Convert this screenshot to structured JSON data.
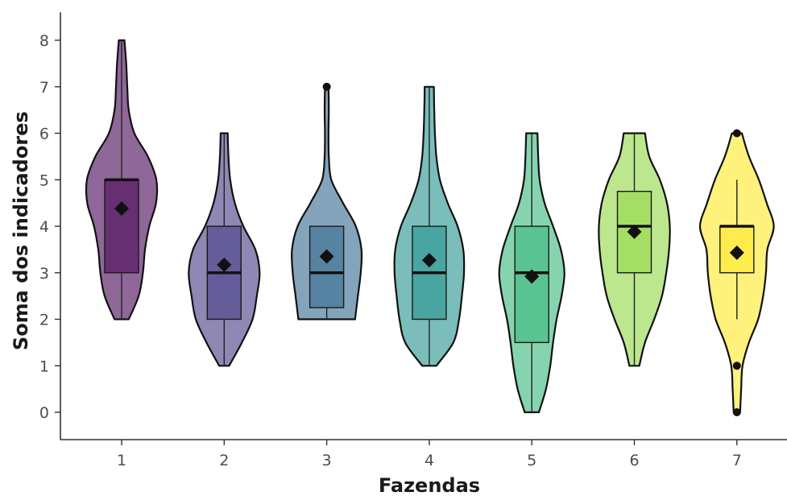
{
  "chart_data": {
    "type": "violin",
    "xlabel": "Fazendas",
    "ylabel": "Soma dos indicadores",
    "ylim": [
      -0.55,
      8.6
    ],
    "yticks": [
      0,
      1,
      2,
      3,
      4,
      5,
      6,
      7,
      8
    ],
    "grid": false,
    "legend": "none",
    "series": [
      {
        "category": "1",
        "color": "#440154",
        "min": 2,
        "q1": 3,
        "median": 5,
        "q3": 5,
        "max": 8,
        "mean": 4.38,
        "outliers": [],
        "density": [
          [
            2,
            0.2
          ],
          [
            2.5,
            0.48
          ],
          [
            3,
            0.6
          ],
          [
            3.5,
            0.66
          ],
          [
            4,
            0.78
          ],
          [
            4.5,
            0.97
          ],
          [
            5,
            0.98
          ],
          [
            5.5,
            0.74
          ],
          [
            6,
            0.36
          ],
          [
            6.5,
            0.2
          ],
          [
            7,
            0.16
          ],
          [
            7.5,
            0.13
          ],
          [
            8,
            0.08
          ]
        ]
      },
      {
        "category": "2",
        "color": "#443983",
        "min": 1,
        "q1": 2,
        "median": 3,
        "q3": 4,
        "max": 6,
        "mean": 3.17,
        "outliers": [],
        "density": [
          [
            1,
            0.14
          ],
          [
            1.5,
            0.5
          ],
          [
            2,
            0.8
          ],
          [
            2.5,
            0.92
          ],
          [
            3,
            1.0
          ],
          [
            3.5,
            0.88
          ],
          [
            4,
            0.54
          ],
          [
            4.5,
            0.3
          ],
          [
            5,
            0.17
          ],
          [
            5.5,
            0.12
          ],
          [
            6,
            0.1
          ]
        ]
      },
      {
        "category": "3",
        "color": "#31688e",
        "min": 2,
        "q1": 2.25,
        "median": 3,
        "q3": 4,
        "max": 4,
        "mean": 3.35,
        "outliers": [
          7
        ],
        "density": [
          [
            2,
            0.8
          ],
          [
            2.5,
            0.88
          ],
          [
            3,
            0.96
          ],
          [
            3.5,
            0.98
          ],
          [
            4,
            0.82
          ],
          [
            4.5,
            0.46
          ],
          [
            5,
            0.13
          ],
          [
            5.5,
            0.06
          ],
          [
            6,
            0.05
          ],
          [
            6.5,
            0.06
          ],
          [
            7,
            0.05
          ]
        ]
      },
      {
        "category": "4",
        "color": "#21918c",
        "min": 1,
        "q1": 2,
        "median": 3,
        "q3": 4,
        "max": 7,
        "mean": 3.27,
        "outliers": [],
        "density": [
          [
            1,
            0.2
          ],
          [
            1.5,
            0.68
          ],
          [
            2,
            0.84
          ],
          [
            2.5,
            0.92
          ],
          [
            3,
            0.98
          ],
          [
            3.5,
            0.96
          ],
          [
            4,
            0.8
          ],
          [
            4.5,
            0.52
          ],
          [
            5,
            0.3
          ],
          [
            5.5,
            0.2
          ],
          [
            6,
            0.16
          ],
          [
            6.5,
            0.14
          ],
          [
            7,
            0.13
          ]
        ]
      },
      {
        "category": "5",
        "color": "#35b779",
        "min": 0,
        "q1": 1.5,
        "median": 3,
        "q3": 4,
        "max": 6,
        "mean": 2.92,
        "outliers": [],
        "density": [
          [
            0,
            0.2
          ],
          [
            0.5,
            0.4
          ],
          [
            1,
            0.52
          ],
          [
            1.5,
            0.6
          ],
          [
            2,
            0.7
          ],
          [
            2.5,
            0.84
          ],
          [
            3,
            0.92
          ],
          [
            3.5,
            0.82
          ],
          [
            4,
            0.6
          ],
          [
            4.5,
            0.36
          ],
          [
            5,
            0.22
          ],
          [
            5.5,
            0.18
          ],
          [
            6,
            0.16
          ]
        ]
      },
      {
        "category": "6",
        "color": "#90d743",
        "min": 1,
        "q1": 3,
        "median": 4,
        "q3": 4.75,
        "max": 6,
        "mean": 3.88,
        "outliers": [],
        "density": [
          [
            1,
            0.14
          ],
          [
            1.5,
            0.3
          ],
          [
            2,
            0.56
          ],
          [
            2.5,
            0.78
          ],
          [
            3,
            0.9
          ],
          [
            3.5,
            0.98
          ],
          [
            4,
            1.0
          ],
          [
            4.5,
            0.92
          ],
          [
            5,
            0.72
          ],
          [
            5.5,
            0.42
          ],
          [
            6,
            0.3
          ]
        ]
      },
      {
        "category": "7",
        "color": "#fde725",
        "min": 2,
        "q1": 3,
        "median": 4,
        "q3": 4,
        "max": 5,
        "mean": 3.43,
        "outliers": [
          0,
          1,
          6
        ],
        "density": [
          [
            0,
            0.09
          ],
          [
            0.5,
            0.12
          ],
          [
            1,
            0.16
          ],
          [
            1.5,
            0.34
          ],
          [
            2,
            0.6
          ],
          [
            2.5,
            0.74
          ],
          [
            3,
            0.82
          ],
          [
            3.5,
            0.86
          ],
          [
            4,
            1.04
          ],
          [
            4.5,
            0.84
          ],
          [
            5,
            0.62
          ],
          [
            5.5,
            0.34
          ],
          [
            6,
            0.14
          ]
        ]
      }
    ]
  }
}
